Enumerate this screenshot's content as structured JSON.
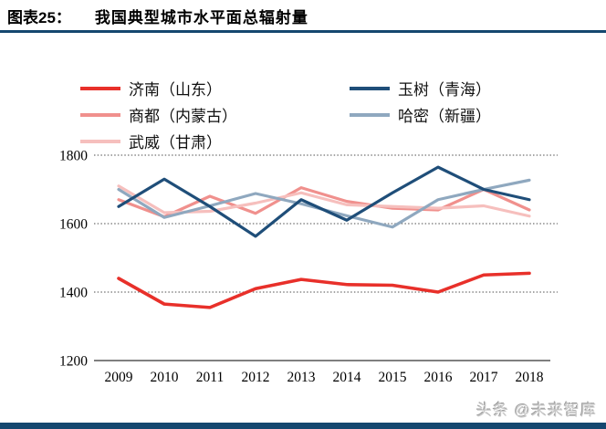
{
  "header": {
    "caption_label": "图表25：",
    "caption_title": "我国典型城市水平面总辐射量"
  },
  "watermark": "头条 @未来智库",
  "colors": {
    "accent_navy": "#14476f",
    "grid_dotted": "#4d4d4d",
    "axis_line": "#333333"
  },
  "chart_data": {
    "type": "line",
    "title": "我国典型城市水平面总辐射量",
    "x": [
      2009,
      2010,
      2011,
      2012,
      2013,
      2014,
      2015,
      2016,
      2017,
      2018
    ],
    "series": [
      {
        "name": "济南（山东）",
        "color": "#e8302a",
        "values": [
          1440,
          1365,
          1355,
          1410,
          1437,
          1422,
          1420,
          1400,
          1450,
          1455
        ]
      },
      {
        "name": "商都（内蒙古）",
        "color": "#f0908d",
        "values": [
          1670,
          1620,
          1680,
          1630,
          1705,
          1665,
          1645,
          1640,
          1700,
          1640
        ]
      },
      {
        "name": "武威（甘肃）",
        "color": "#f6bfbd",
        "values": [
          1710,
          1632,
          1636,
          1660,
          1690,
          1655,
          1650,
          1645,
          1652,
          1622
        ]
      },
      {
        "name": "玉树（青海）",
        "color": "#1f4e79",
        "values": [
          1650,
          1730,
          1650,
          1563,
          1670,
          1610,
          1690,
          1765,
          1700,
          1670
        ]
      },
      {
        "name": "哈密（新疆）",
        "color": "#8fa8bf",
        "values": [
          1700,
          1618,
          1652,
          1688,
          1658,
          1623,
          1590,
          1670,
          1700,
          1727
        ]
      }
    ],
    "ylim": [
      1200,
      1800
    ],
    "yticks": [
      1200,
      1400,
      1600,
      1800
    ],
    "xlabel": "",
    "ylabel": "",
    "grid": "horizontal-dotted",
    "legend_position": "top",
    "legend_columns": [
      [
        0,
        1,
        2
      ],
      [
        3,
        4
      ]
    ]
  }
}
